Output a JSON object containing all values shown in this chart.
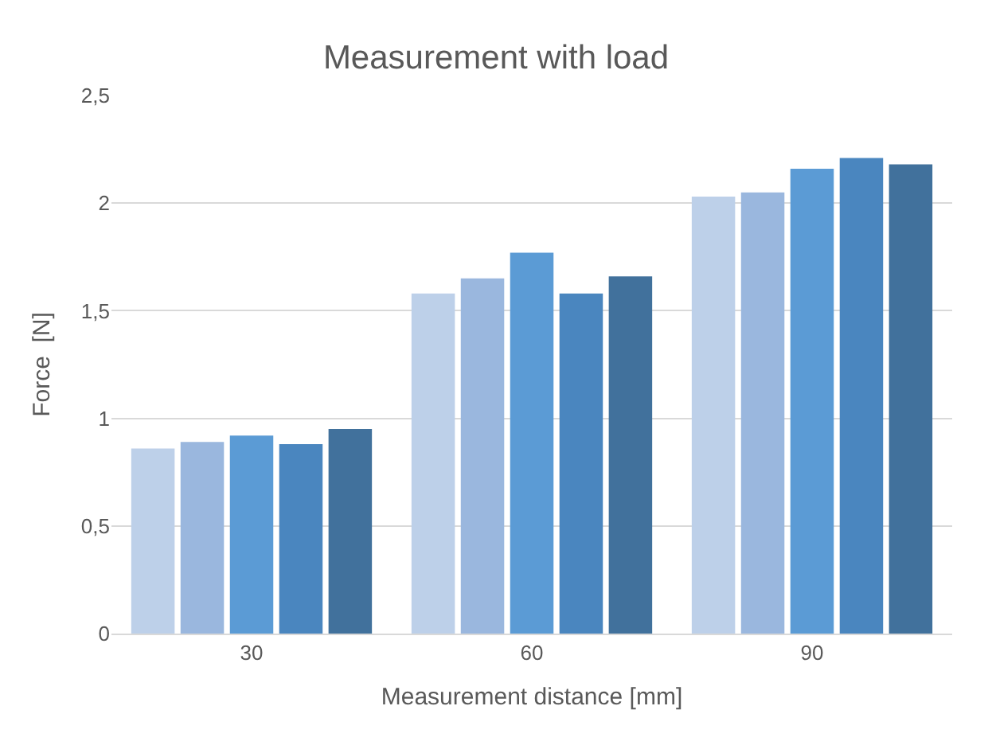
{
  "chart_data": {
    "type": "bar",
    "title": "Measurement with load",
    "xlabel": "Measurement distance [mm]",
    "ylabel": "Force  [N]",
    "categories": [
      "30",
      "60",
      "90"
    ],
    "series": [
      {
        "color": "#bdd0e9",
        "values": [
          0.86,
          1.58,
          2.03
        ]
      },
      {
        "color": "#9ab7de",
        "values": [
          0.89,
          1.65,
          2.05
        ]
      },
      {
        "color": "#5b9bd5",
        "values": [
          0.92,
          1.77,
          2.16
        ]
      },
      {
        "color": "#4a86bf",
        "values": [
          0.88,
          1.58,
          2.21
        ]
      },
      {
        "color": "#41719c",
        "values": [
          0.95,
          1.66,
          2.18
        ]
      }
    ],
    "ylim": [
      0,
      2.5
    ],
    "yticks": [
      0,
      {
        "value": 0.5,
        "label": "0,5"
      },
      1,
      {
        "value": 1.5,
        "label": "1,5"
      },
      2,
      {
        "value": 2.5,
        "label": "2,5"
      }
    ],
    "grid": "y"
  }
}
